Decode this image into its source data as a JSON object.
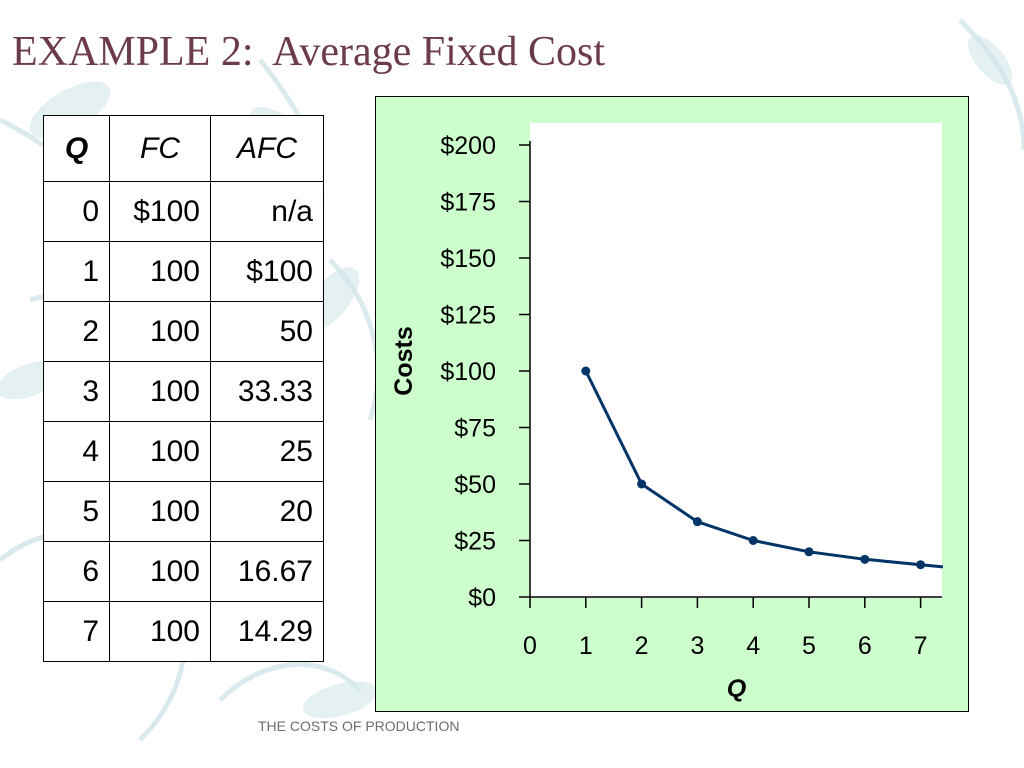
{
  "slide": {
    "title": "EXAMPLE 2:  Average Fixed Cost",
    "footer": "THE COSTS OF PRODUCTION"
  },
  "table": {
    "headers": [
      "Q",
      "FC",
      "AFC"
    ],
    "rows": [
      [
        "0",
        "$100",
        "n/a"
      ],
      [
        "1",
        "100",
        "$100"
      ],
      [
        "2",
        "100",
        "50"
      ],
      [
        "3",
        "100",
        "33.33"
      ],
      [
        "4",
        "100",
        "25"
      ],
      [
        "5",
        "100",
        "20"
      ],
      [
        "6",
        "100",
        "16.67"
      ],
      [
        "7",
        "100",
        "14.29"
      ]
    ]
  },
  "colors": {
    "title": "#6b3a4e",
    "chart_background": "#ccffcc",
    "plot_background": "#ffffff",
    "line": "#003366",
    "footer": "#6e6e6e",
    "decoration": "#d4e6ea"
  },
  "chart_data": {
    "type": "line",
    "title": "",
    "xlabel": "Q",
    "ylabel": "Costs",
    "x_ticks": [
      "0",
      "1",
      "2",
      "3",
      "4",
      "5",
      "6",
      "7"
    ],
    "y_ticks": [
      "$0",
      "$25",
      "$50",
      "$75",
      "$100",
      "$125",
      "$150",
      "$175",
      "$200"
    ],
    "xlim": [
      0,
      7.4
    ],
    "ylim": [
      0,
      200
    ],
    "series": [
      {
        "x": [
          1,
          2,
          3,
          4,
          5,
          6,
          7
        ],
        "values": [
          100,
          50,
          33.33,
          25,
          20,
          16.67,
          14.29
        ],
        "line_extends_to_x": 7.4
      }
    ],
    "grid": false,
    "legend": "none"
  }
}
